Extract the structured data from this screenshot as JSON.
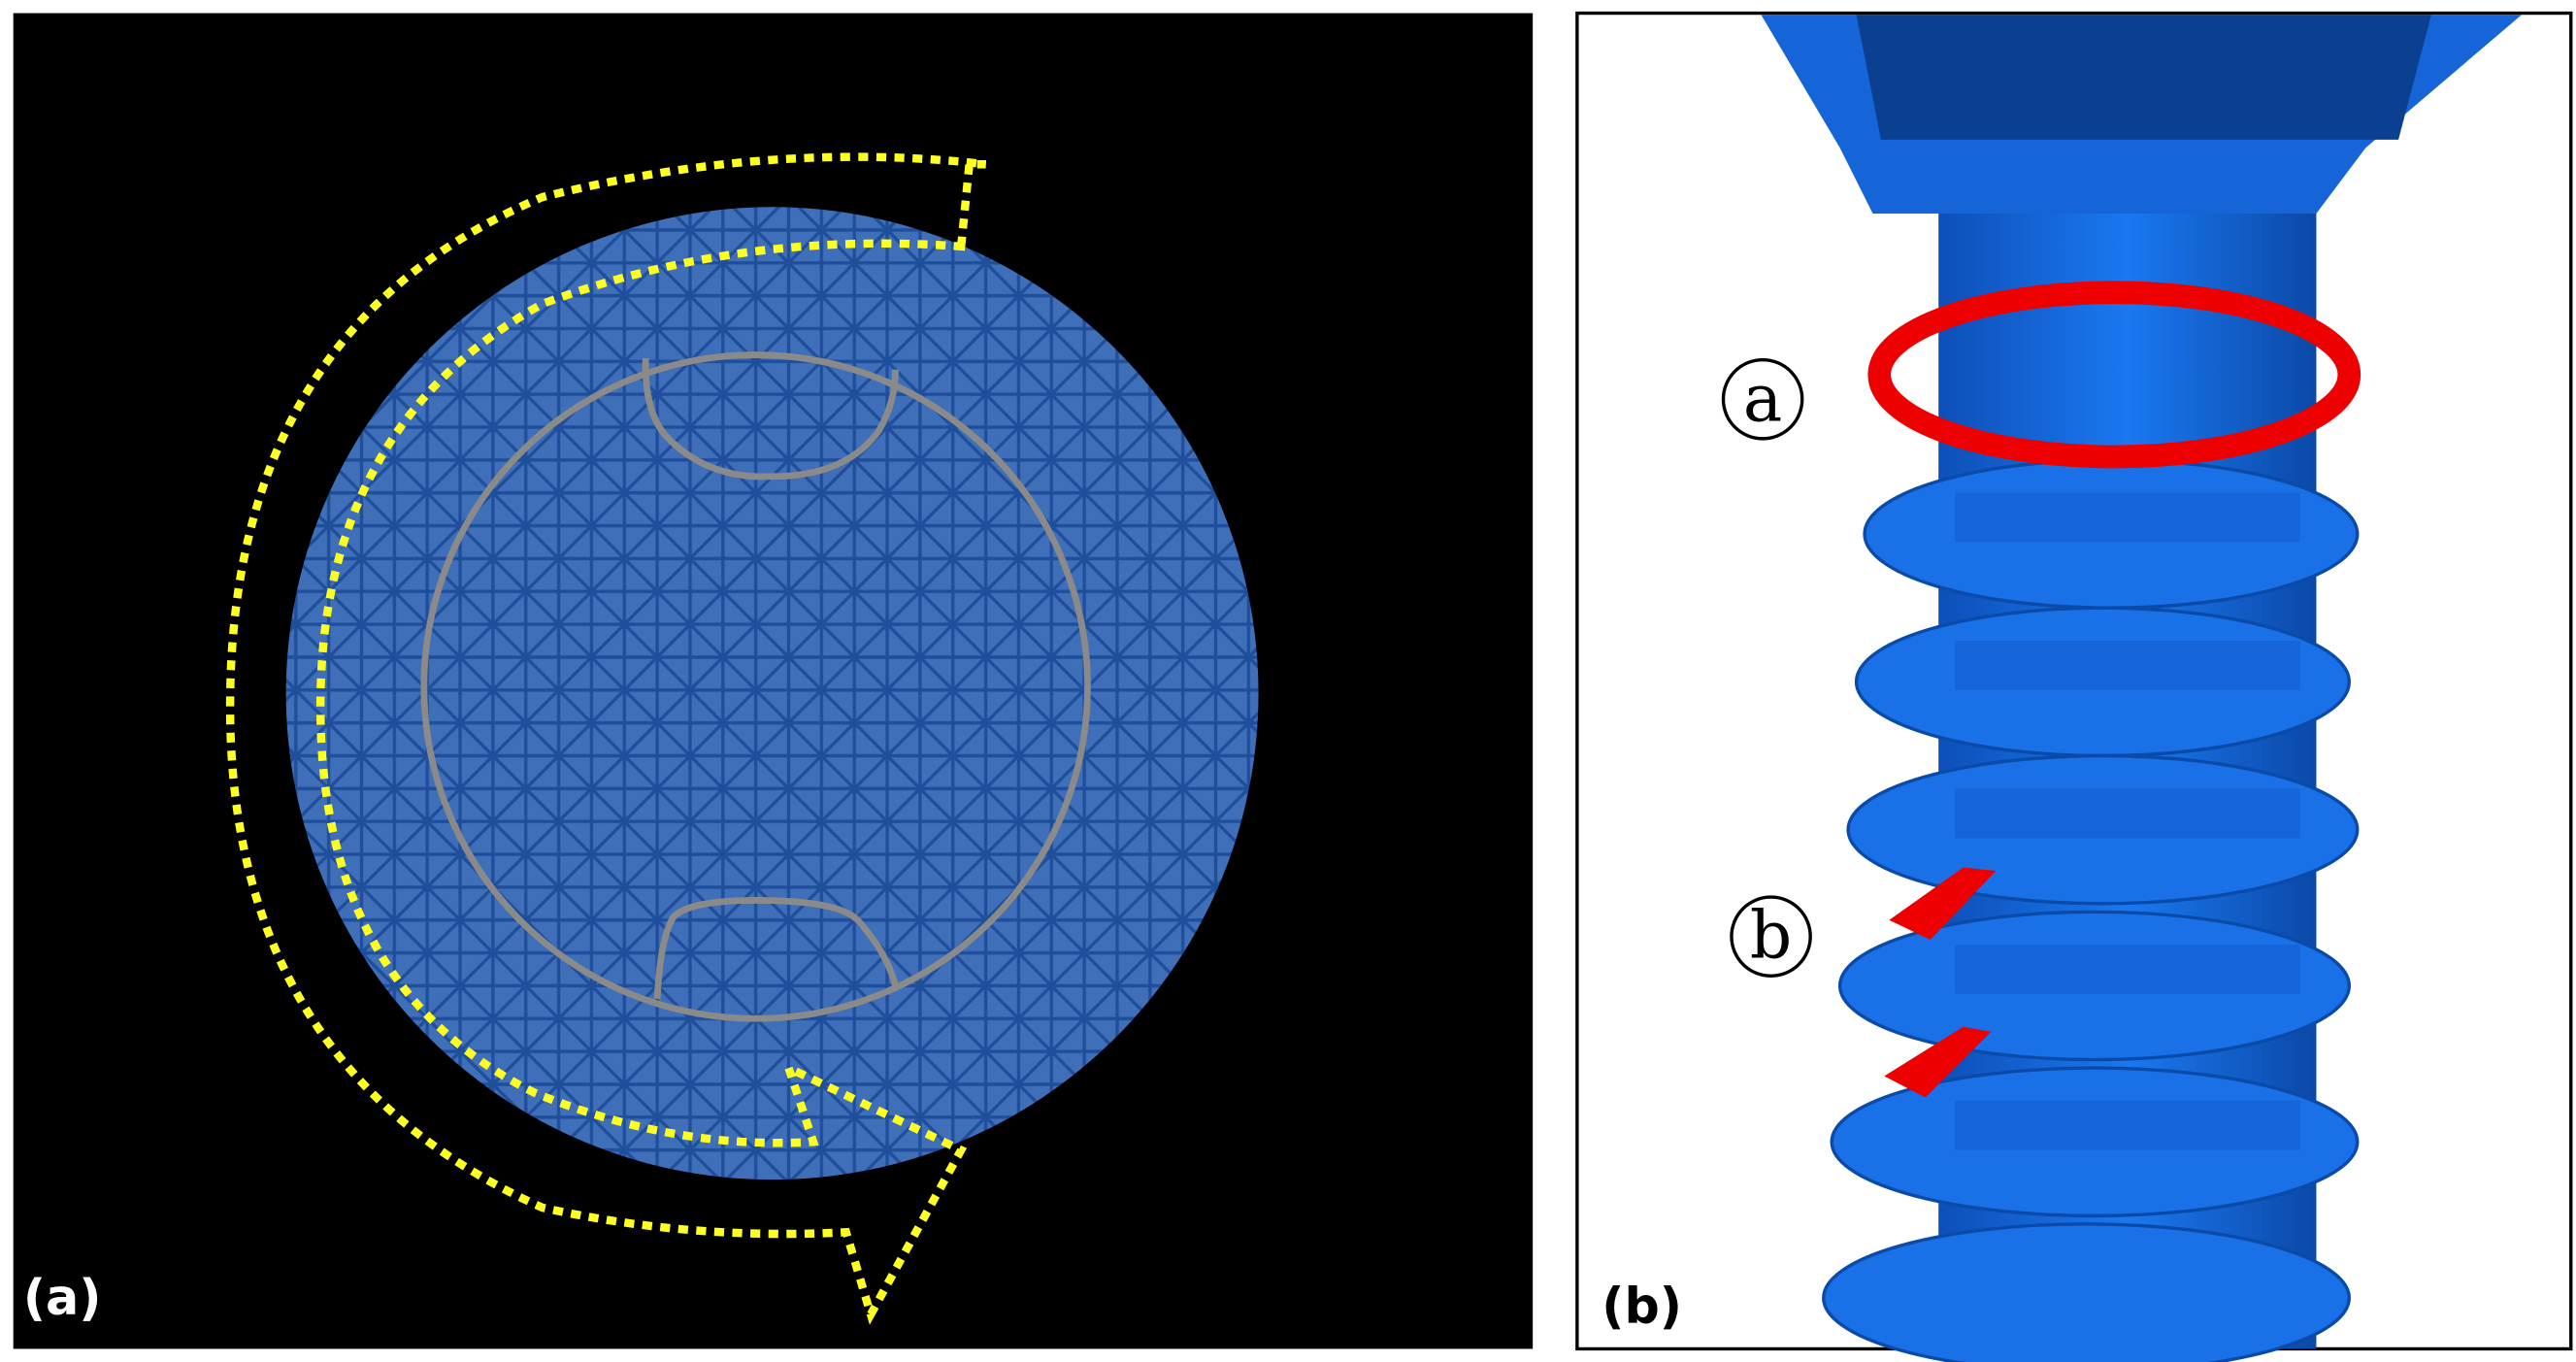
{
  "panels": [
    {
      "label": "(a)"
    },
    {
      "label": "(b)",
      "callouts": [
        "a",
        "b"
      ]
    }
  ]
}
